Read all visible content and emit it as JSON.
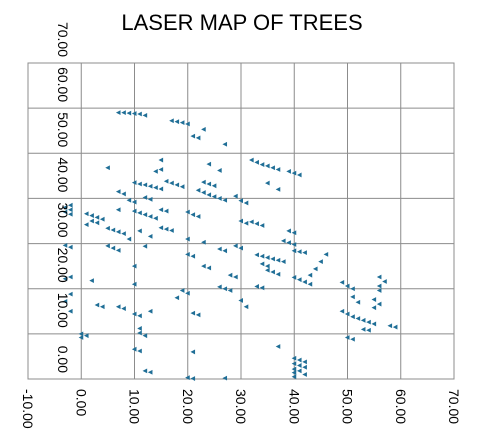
{
  "chart_data": {
    "type": "scatter",
    "title": "LASER MAP OF TREES",
    "xlabel": "",
    "ylabel": "",
    "xlim": [
      -10,
      70
    ],
    "ylim": [
      0,
      70
    ],
    "x_ticks": [
      "-10.00",
      "0.00",
      "10.00",
      "20.00",
      "30.00",
      "40.00",
      "50.00",
      "60.00",
      "70.00"
    ],
    "y_ticks": [
      "0.00",
      "10.00",
      "20.00",
      "30.00",
      "40.00",
      "50.00",
      "60.00",
      "70.00"
    ],
    "grid": true,
    "marker": "triangle",
    "color": "#1f6e96",
    "series": [
      {
        "points": [
          [
            7,
            59.0
          ],
          [
            8,
            59.0
          ],
          [
            9,
            58.9
          ],
          [
            10,
            58.8
          ],
          [
            11,
            58.7
          ],
          [
            12,
            58.4
          ],
          [
            17,
            57.2
          ],
          [
            18,
            57.0
          ],
          [
            19,
            56.8
          ],
          [
            20,
            56.5
          ],
          [
            23,
            55.3
          ],
          [
            21,
            53.8
          ],
          [
            22,
            53.4
          ],
          [
            27,
            52.0
          ],
          [
            32,
            48.5
          ],
          [
            33,
            48.0
          ],
          [
            34,
            47.5
          ],
          [
            35,
            47.2
          ],
          [
            36,
            46.8
          ],
          [
            37,
            46.4
          ],
          [
            15,
            48.5
          ],
          [
            24,
            47.6
          ],
          [
            26,
            46.2
          ],
          [
            39,
            46.0
          ],
          [
            40,
            45.6
          ],
          [
            41,
            45.2
          ],
          [
            35,
            43.4
          ],
          [
            37,
            42.0
          ],
          [
            5,
            46.8
          ],
          [
            10,
            43.5
          ],
          [
            11,
            43.2
          ],
          [
            12,
            43.0
          ],
          [
            13,
            42.7
          ],
          [
            14,
            42.4
          ],
          [
            15,
            42.1
          ],
          [
            16,
            43.8
          ],
          [
            17,
            43.4
          ],
          [
            18,
            43.0
          ],
          [
            19,
            42.6
          ],
          [
            23,
            43.6
          ],
          [
            24,
            43.2
          ],
          [
            25,
            42.8
          ],
          [
            7,
            41.5
          ],
          [
            8,
            41.0
          ],
          [
            15,
            46.4
          ],
          [
            14,
            46.0
          ],
          [
            22,
            41.8
          ],
          [
            23,
            41.3
          ],
          [
            24,
            40.8
          ],
          [
            25,
            40.4
          ],
          [
            26,
            40.0
          ],
          [
            27,
            39.6
          ],
          [
            12,
            40.2
          ],
          [
            13,
            39.8
          ],
          [
            9,
            39.6
          ],
          [
            10,
            39.2
          ],
          [
            29,
            40.5
          ],
          [
            30,
            39.5
          ],
          [
            31,
            39.0
          ],
          [
            -2,
            38.5
          ],
          [
            -3,
            38.0
          ],
          [
            -2,
            37.5
          ],
          [
            -3,
            37.0
          ],
          [
            -2,
            36.5
          ],
          [
            1,
            36.6
          ],
          [
            2,
            36.2
          ],
          [
            3,
            35.8
          ],
          [
            4,
            35.4
          ],
          [
            2,
            35.0
          ],
          [
            3,
            34.6
          ],
          [
            1,
            34.2
          ],
          [
            7,
            37.5
          ],
          [
            10,
            37.2
          ],
          [
            11,
            36.8
          ],
          [
            12,
            36.4
          ],
          [
            13,
            36.0
          ],
          [
            14,
            35.6
          ],
          [
            15,
            37.5
          ],
          [
            16,
            37.2
          ],
          [
            20,
            37.0
          ],
          [
            21,
            36.4
          ],
          [
            22,
            36.0
          ],
          [
            30,
            35.0
          ],
          [
            31,
            34.5
          ],
          [
            15,
            33.5
          ],
          [
            16,
            33.2
          ],
          [
            17,
            32.9
          ],
          [
            5,
            33.4
          ],
          [
            6,
            33.0
          ],
          [
            7,
            32.6
          ],
          [
            8,
            32.2
          ],
          [
            11,
            32.8
          ],
          [
            9,
            31.0
          ],
          [
            13,
            31.6
          ],
          [
            20,
            31.0
          ],
          [
            23,
            30.3
          ],
          [
            32,
            34.8
          ],
          [
            33,
            34.4
          ],
          [
            34,
            34.0
          ],
          [
            39,
            32.8
          ],
          [
            40,
            32.4
          ],
          [
            38,
            30.6
          ],
          [
            39,
            30.2
          ],
          [
            40,
            29.8
          ],
          [
            29,
            29.5
          ],
          [
            30,
            29.0
          ],
          [
            -3,
            29.6
          ],
          [
            -2,
            29.2
          ],
          [
            5,
            29.5
          ],
          [
            6,
            29.0
          ],
          [
            7,
            28.5
          ],
          [
            12,
            29.4
          ],
          [
            26,
            28.8
          ],
          [
            27,
            28.4
          ],
          [
            20,
            27.6
          ],
          [
            21,
            27.2
          ],
          [
            33,
            27.5
          ],
          [
            34,
            27.2
          ],
          [
            35,
            26.9
          ],
          [
            36,
            26.6
          ],
          [
            37,
            26.3
          ],
          [
            38,
            26.0
          ],
          [
            40,
            28.4
          ],
          [
            41,
            28.2
          ],
          [
            42,
            28.0
          ],
          [
            34,
            25.5
          ],
          [
            35,
            25.0
          ],
          [
            10,
            25.0
          ],
          [
            23,
            25.0
          ],
          [
            24,
            24.6
          ],
          [
            35,
            24.1
          ],
          [
            36,
            23.7
          ],
          [
            37,
            23.2
          ],
          [
            28,
            23.0
          ],
          [
            29,
            22.6
          ],
          [
            -2,
            22.6
          ],
          [
            -3,
            22.2
          ],
          [
            46,
            27.6
          ],
          [
            45,
            26.0
          ],
          [
            44,
            24.4
          ],
          [
            43,
            23.0
          ],
          [
            40,
            22.5
          ],
          [
            41,
            22.0
          ],
          [
            42,
            21.5
          ],
          [
            43,
            21.0
          ],
          [
            33,
            20.5
          ],
          [
            34,
            20.2
          ],
          [
            26,
            20.4
          ],
          [
            27,
            20.0
          ],
          [
            28,
            19.6
          ],
          [
            -2,
            18.8
          ],
          [
            -3,
            17.2
          ],
          [
            2,
            21.8
          ],
          [
            10,
            21.0
          ],
          [
            49,
            21.4
          ],
          [
            50,
            20.6
          ],
          [
            51,
            20.0
          ],
          [
            56,
            22.6
          ],
          [
            57,
            21.6
          ],
          [
            56,
            20.6
          ],
          [
            56,
            19.6
          ],
          [
            51,
            18.2
          ],
          [
            52,
            17.0
          ],
          [
            55,
            17.6
          ],
          [
            56,
            16.6
          ],
          [
            55,
            15.8
          ],
          [
            19,
            19.6
          ],
          [
            20,
            19.0
          ],
          [
            18,
            18.0
          ],
          [
            3,
            16.4
          ],
          [
            4,
            16.0
          ],
          [
            7,
            16.0
          ],
          [
            8,
            15.6
          ],
          [
            13,
            15.0
          ],
          [
            10,
            14.4
          ],
          [
            11,
            14.0
          ],
          [
            21,
            14.6
          ],
          [
            22,
            14.2
          ],
          [
            30,
            17.4
          ],
          [
            31,
            16.0
          ],
          [
            49,
            15.0
          ],
          [
            50,
            14.4
          ],
          [
            51,
            13.8
          ],
          [
            52,
            13.4
          ],
          [
            53,
            13.0
          ],
          [
            54,
            12.6
          ],
          [
            55,
            12.2
          ],
          [
            58,
            11.8
          ],
          [
            59,
            11.5
          ],
          [
            -2,
            15.0
          ],
          [
            11,
            11.2
          ],
          [
            11,
            10.2
          ],
          [
            12,
            9.6
          ],
          [
            0,
            10.0
          ],
          [
            1,
            9.6
          ],
          [
            0,
            9.2
          ],
          [
            50,
            9.2
          ],
          [
            51,
            8.8
          ],
          [
            53,
            11.0
          ],
          [
            54,
            10.8
          ],
          [
            10,
            6.6
          ],
          [
            11,
            6.2
          ],
          [
            21,
            6.0
          ],
          [
            37,
            7.2
          ],
          [
            40,
            4.6
          ],
          [
            41,
            4.2
          ],
          [
            42,
            3.8
          ],
          [
            40,
            3.4
          ],
          [
            41,
            3.0
          ],
          [
            42,
            2.6
          ],
          [
            40,
            2.2
          ],
          [
            41,
            1.8
          ],
          [
            40,
            1.4
          ],
          [
            42,
            1.0
          ],
          [
            12,
            1.8
          ],
          [
            13,
            1.5
          ],
          [
            20,
            0.3
          ],
          [
            21,
            0.1
          ],
          [
            27,
            0.2
          ],
          [
            40,
            0.5
          ]
        ]
      }
    ]
  }
}
